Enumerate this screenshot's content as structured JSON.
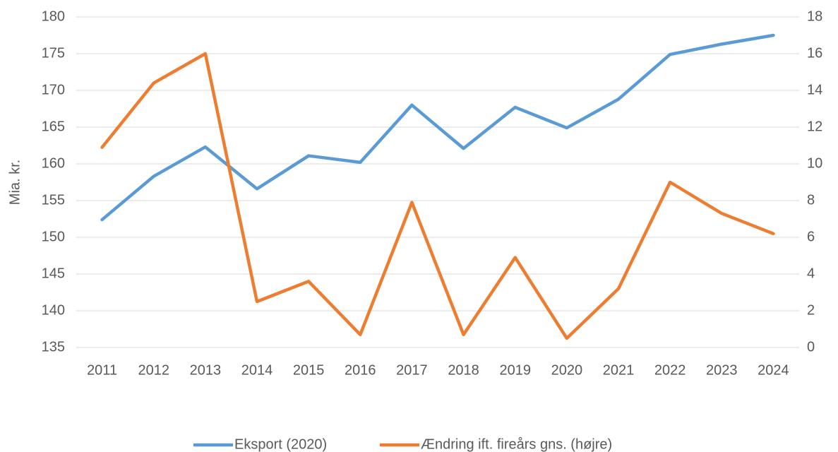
{
  "chart_data": {
    "type": "line",
    "ylabel": "Mia. kr.",
    "categories": [
      "2011",
      "2012",
      "2013",
      "2014",
      "2015",
      "2016",
      "2017",
      "2018",
      "2019",
      "2020",
      "2021",
      "2022",
      "2023",
      "2024"
    ],
    "series": [
      {
        "name": "Eksport (2020)",
        "color": "#5b9bd5",
        "axis": "y",
        "values": [
          152.4,
          158.3,
          162.3,
          156.6,
          161.1,
          160.2,
          168.0,
          162.1,
          167.7,
          164.9,
          168.8,
          174.9,
          176.3,
          177.5
        ]
      },
      {
        "name": "Ændring ift. fireårs gns. (højre)",
        "color": "#ed7d31",
        "axis": "y2",
        "values": [
          10.9,
          14.4,
          16.0,
          2.5,
          3.6,
          0.7,
          7.9,
          0.7,
          4.9,
          0.5,
          3.2,
          9.0,
          7.3,
          6.2
        ]
      }
    ],
    "ylim": [
      135,
      180
    ],
    "yticks": [
      135,
      140,
      145,
      150,
      155,
      160,
      165,
      170,
      175,
      180
    ],
    "y2lim": [
      0,
      18
    ],
    "y2ticks": [
      0,
      2,
      4,
      6,
      8,
      10,
      12,
      14,
      16,
      18
    ],
    "grid": true,
    "legend": "bottom"
  }
}
